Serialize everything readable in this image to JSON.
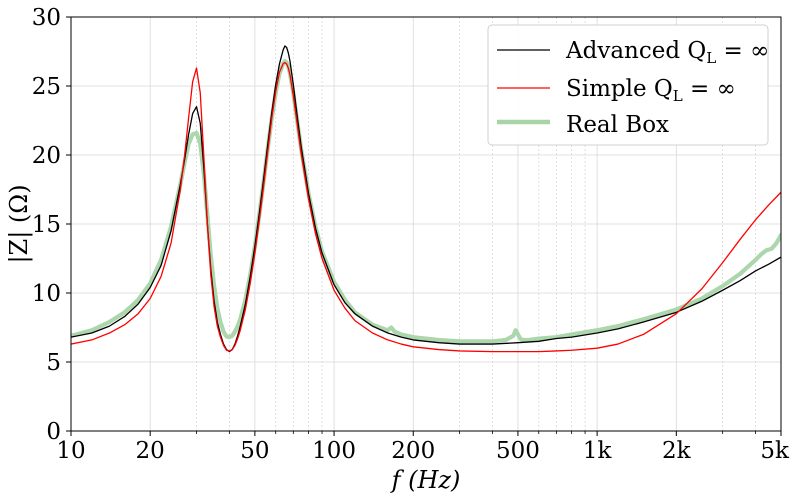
{
  "chart_data": {
    "type": "line",
    "title": "",
    "xlabel": "f (Hz)",
    "ylabel": "|Z| (Ω)",
    "xscale": "log",
    "xlim": [
      10,
      5000
    ],
    "ylim": [
      0,
      30
    ],
    "grid": true,
    "legend_position": "top-right",
    "x_ticks": [
      {
        "value": 10,
        "label": "10"
      },
      {
        "value": 20,
        "label": "20"
      },
      {
        "value": 50,
        "label": "50"
      },
      {
        "value": 100,
        "label": "100"
      },
      {
        "value": 200,
        "label": "200"
      },
      {
        "value": 500,
        "label": "500"
      },
      {
        "value": 1000,
        "label": "1k"
      },
      {
        "value": 2000,
        "label": "2k"
      },
      {
        "value": 5000,
        "label": "5k"
      }
    ],
    "y_ticks": [
      {
        "value": 0,
        "label": "0"
      },
      {
        "value": 5,
        "label": "5"
      },
      {
        "value": 10,
        "label": "10"
      },
      {
        "value": 15,
        "label": "15"
      },
      {
        "value": 20,
        "label": "20"
      },
      {
        "value": 25,
        "label": "25"
      },
      {
        "value": 30,
        "label": "30"
      }
    ],
    "minor_x_ticks": [
      30,
      40,
      60,
      70,
      80,
      90,
      300,
      400,
      600,
      700,
      800,
      900,
      3000,
      4000
    ],
    "series": [
      {
        "name": "Advanced Q_L = ∞",
        "legend_main": "Advanced Q",
        "legend_sub": "L",
        "legend_tail": " = ∞",
        "color": "#000000",
        "x": [
          10,
          12,
          14,
          16,
          18,
          20,
          22,
          24,
          26,
          27,
          28,
          29,
          30,
          31,
          32,
          33,
          34,
          35,
          36,
          37,
          38,
          39,
          40,
          41,
          42,
          43,
          44,
          46,
          48,
          50,
          52,
          54,
          56,
          58,
          60,
          62,
          64,
          65,
          66,
          67,
          68,
          70,
          72,
          75,
          80,
          85,
          90,
          100,
          110,
          120,
          140,
          160,
          180,
          200,
          250,
          300,
          400,
          500,
          600,
          700,
          800,
          1000,
          1200,
          1500,
          2000,
          2500,
          3000,
          3500,
          4000,
          4500,
          5000
        ],
        "values": [
          6.8,
          7.1,
          7.6,
          8.3,
          9.2,
          10.4,
          12.0,
          14.5,
          17.8,
          19.6,
          21.5,
          23.0,
          23.5,
          22.3,
          19.0,
          15.0,
          11.7,
          9.4,
          7.9,
          7.0,
          6.3,
          5.9,
          5.75,
          5.9,
          6.3,
          6.9,
          7.6,
          9.2,
          11.2,
          13.4,
          15.8,
          18.3,
          20.8,
          23.1,
          25.1,
          26.6,
          27.6,
          27.9,
          27.8,
          27.4,
          26.8,
          25.1,
          23.2,
          20.6,
          17.2,
          14.7,
          12.9,
          10.6,
          9.3,
          8.5,
          7.6,
          7.1,
          6.8,
          6.6,
          6.4,
          6.3,
          6.3,
          6.4,
          6.5,
          6.7,
          6.8,
          7.1,
          7.4,
          7.9,
          8.6,
          9.4,
          10.2,
          10.9,
          11.6,
          12.1,
          12.6
        ]
      },
      {
        "name": "Simple Q_L = ∞",
        "legend_main": "Simple Q",
        "legend_sub": "L",
        "legend_tail": " = ∞",
        "color": "#ff0000",
        "x": [
          10,
          12,
          14,
          16,
          18,
          20,
          22,
          24,
          26,
          27,
          28,
          29,
          30,
          31,
          32,
          33,
          34,
          35,
          36,
          37,
          38,
          39,
          40,
          41,
          42,
          43,
          44,
          46,
          48,
          50,
          52,
          54,
          56,
          58,
          60,
          62,
          64,
          65,
          66,
          67,
          68,
          70,
          72,
          75,
          80,
          85,
          90,
          100,
          110,
          120,
          140,
          160,
          180,
          200,
          250,
          300,
          400,
          500,
          600,
          700,
          800,
          1000,
          1200,
          1500,
          2000,
          2500,
          3000,
          3500,
          4000,
          4500,
          5000
        ],
        "values": [
          6.3,
          6.6,
          7.1,
          7.7,
          8.5,
          9.6,
          11.2,
          13.6,
          17.4,
          19.9,
          22.7,
          25.3,
          26.3,
          24.5,
          19.8,
          15.0,
          11.3,
          9.0,
          7.6,
          6.8,
          6.2,
          5.85,
          5.8,
          5.9,
          6.2,
          6.7,
          7.3,
          8.8,
          10.7,
          12.9,
          15.3,
          17.8,
          20.3,
          22.7,
          24.6,
          26.0,
          26.6,
          26.7,
          26.6,
          26.3,
          25.8,
          24.3,
          22.6,
          20.1,
          16.8,
          14.3,
          12.5,
          10.2,
          8.9,
          8.0,
          7.1,
          6.6,
          6.3,
          6.1,
          5.9,
          5.8,
          5.75,
          5.75,
          5.75,
          5.8,
          5.85,
          6.0,
          6.3,
          7.0,
          8.5,
          10.3,
          12.2,
          13.9,
          15.3,
          16.4,
          17.3
        ]
      },
      {
        "name": "Real Box",
        "legend_main": "Real Box",
        "legend_sub": "",
        "legend_tail": "",
        "color": "#a8d4a8",
        "x": [
          10,
          12,
          14,
          16,
          18,
          20,
          22,
          24,
          26,
          27,
          28,
          29,
          30,
          31,
          32,
          33,
          34,
          35,
          36,
          37,
          38,
          39,
          40,
          41,
          42,
          43,
          44,
          46,
          48,
          50,
          52,
          54,
          56,
          58,
          60,
          62,
          64,
          65,
          66,
          67,
          68,
          70,
          72,
          75,
          80,
          85,
          90,
          100,
          110,
          120,
          140,
          160,
          165,
          170,
          180,
          200,
          250,
          300,
          400,
          450,
          480,
          490,
          500,
          510,
          520,
          550,
          600,
          700,
          800,
          1000,
          1200,
          1500,
          2000,
          2500,
          3000,
          3500,
          4000,
          4200,
          4400,
          4600,
          4800,
          5000
        ],
        "values": [
          6.9,
          7.3,
          7.9,
          8.6,
          9.5,
          10.7,
          12.4,
          14.8,
          17.8,
          19.4,
          20.8,
          21.5,
          21.6,
          20.8,
          18.6,
          15.6,
          12.7,
          10.5,
          8.9,
          7.9,
          7.2,
          6.85,
          6.8,
          6.9,
          7.2,
          7.6,
          8.1,
          9.5,
          11.3,
          13.4,
          15.7,
          18.1,
          20.5,
          22.7,
          24.5,
          25.9,
          26.6,
          26.8,
          26.7,
          26.4,
          25.9,
          24.5,
          22.8,
          20.4,
          17.2,
          14.8,
          13.0,
          10.8,
          9.5,
          8.6,
          7.7,
          7.3,
          7.5,
          7.2,
          7.0,
          6.8,
          6.6,
          6.5,
          6.5,
          6.6,
          6.9,
          7.3,
          7.0,
          6.7,
          6.6,
          6.6,
          6.7,
          6.8,
          7.0,
          7.3,
          7.6,
          8.1,
          8.8,
          9.6,
          10.5,
          11.4,
          12.4,
          12.8,
          13.1,
          13.2,
          13.6,
          14.2
        ]
      }
    ]
  }
}
